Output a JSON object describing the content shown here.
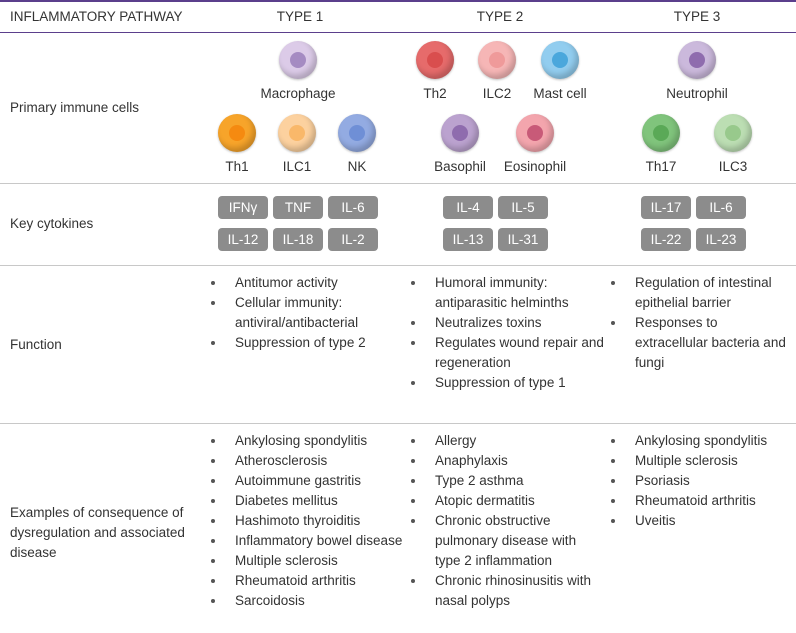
{
  "header": {
    "pathway": "INFLAMMATORY PATHWAY",
    "types": [
      "TYPE 1",
      "TYPE 2",
      "TYPE 3"
    ]
  },
  "rows": [
    {
      "label": "Primary immune cells",
      "columns": [
        [
          "Macrophage",
          "Th1",
          "ILC1",
          "NK"
        ],
        [
          "Th2",
          "ILC2",
          "Mast cell",
          "Basophil",
          "Eosinophil"
        ],
        [
          "Neutrophil",
          "Th17",
          "ILC3"
        ]
      ]
    },
    {
      "label": "Key cytokines",
      "columns": [
        [
          "IFNγ",
          "TNF",
          "IL-6",
          "IL-12",
          "IL-18",
          "IL-2"
        ],
        [
          "IL-4",
          "IL-5",
          "IL-13",
          "IL-31"
        ],
        [
          "IL-17",
          "IL-6",
          "IL-22",
          "IL-23"
        ]
      ]
    },
    {
      "label": "Function",
      "columns": [
        [
          "Antitumor activity",
          "Cellular immunity: antiviral/antibacterial",
          "Suppression of type 2"
        ],
        [
          "Humoral immunity: antiparasitic helminths",
          "Neutralizes toxins",
          "Regulates wound repair and regeneration",
          "Suppression of type 1"
        ],
        [
          "Regulation of intestinal epithelial barrier",
          "Responses to extracellular bacteria and fungi"
        ]
      ]
    },
    {
      "label": "Examples of consequence of dysregulation and associated disease",
      "columns": [
        [
          "Ankylosing spondylitis",
          "Atherosclerosis",
          "Autoimmune gastritis",
          "Diabetes mellitus",
          "Hashimoto thyroiditis",
          "Inflammatory bowel disease",
          "Multiple sclerosis",
          "Rheumatoid arthritis",
          "Sarcoidosis"
        ],
        [
          "Allergy",
          "Anaphylaxis",
          "Type 2 asthma",
          "Atopic dermatitis",
          "Chronic obstructive pulmonary disease with type 2 inflammation",
          "Chronic rhinosinusitis with nasal polyps"
        ],
        [
          "Ankylosing spondylitis",
          "Multiple sclerosis",
          "Psoriasis",
          "Rheumatoid arthritis",
          "Uveitis"
        ]
      ]
    }
  ]
}
